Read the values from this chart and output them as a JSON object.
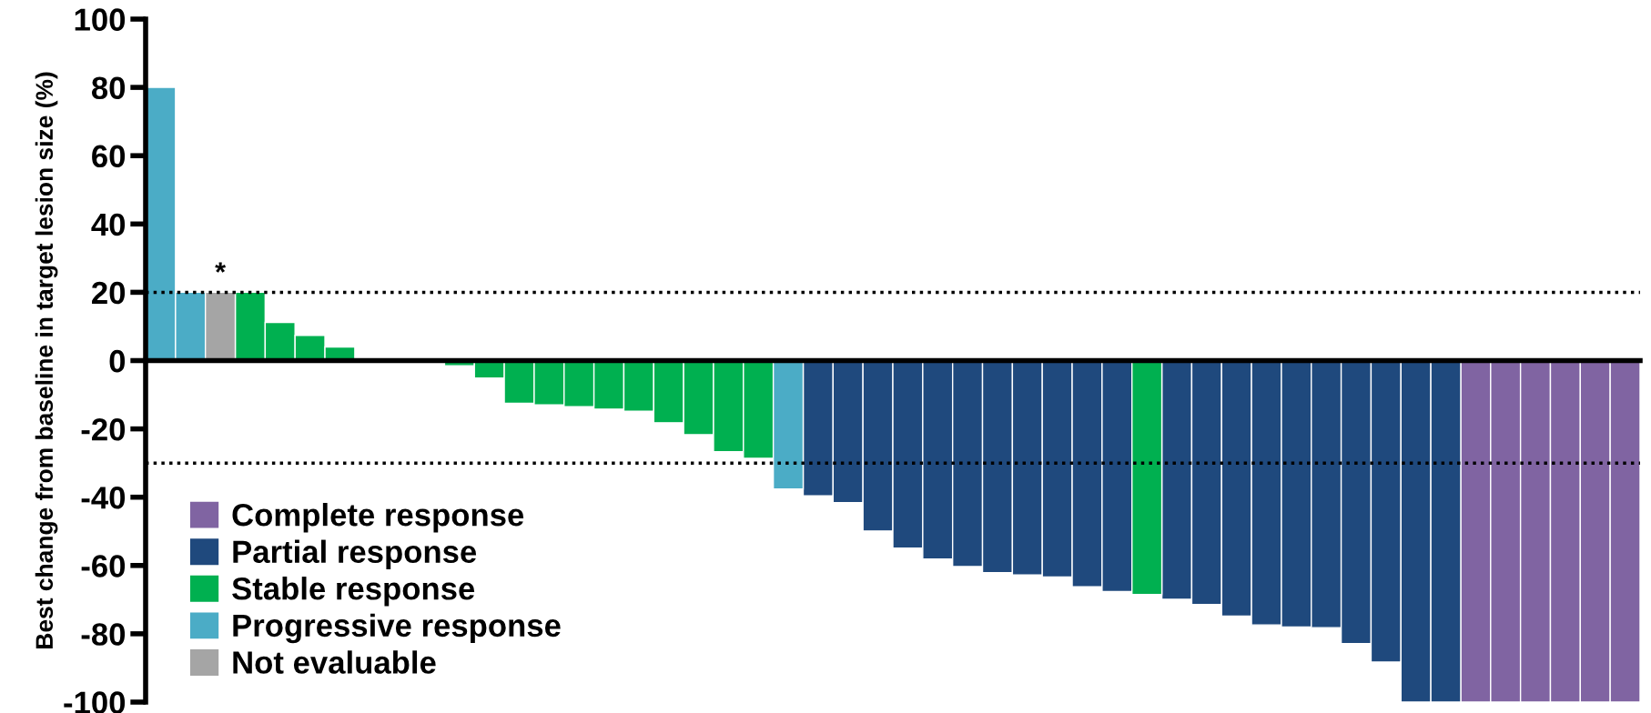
{
  "chart_data": {
    "type": "bar",
    "ylabel": "Best change from baseline in target lesion size (%)",
    "categories": [
      null,
      null,
      null,
      null,
      null,
      null,
      null,
      null,
      null,
      null,
      null,
      null,
      null,
      null,
      null,
      null,
      null,
      null,
      null,
      null,
      null,
      null,
      null,
      null,
      null,
      null,
      null,
      null,
      null,
      null,
      null,
      null,
      null,
      null,
      null,
      null,
      null,
      null,
      null,
      null,
      null,
      null,
      null,
      null,
      null,
      null,
      null,
      null,
      null,
      null
    ],
    "series": [
      {
        "name": "Complete response",
        "color": "#8064a2",
        "values": [
          null,
          null,
          null,
          null,
          null,
          null,
          null,
          null,
          null,
          null,
          null,
          null,
          null,
          null,
          null,
          null,
          null,
          null,
          null,
          null,
          null,
          null,
          null,
          null,
          null,
          null,
          null,
          null,
          null,
          null,
          null,
          null,
          null,
          null,
          null,
          null,
          null,
          null,
          null,
          null,
          null,
          null,
          null,
          null,
          -100,
          -100,
          -100,
          -100,
          -100,
          -100
        ]
      },
      {
        "name": "Partial response",
        "color": "#1f497d",
        "values": [
          null,
          null,
          null,
          null,
          null,
          null,
          null,
          null,
          null,
          null,
          null,
          null,
          null,
          null,
          null,
          null,
          null,
          null,
          null,
          null,
          null,
          null,
          -39.6,
          -41.6,
          -49.9,
          -54.9,
          -58.1,
          -60.3,
          -62.1,
          -62.8,
          -63.4,
          -66.2,
          -67.6,
          null,
          -69.9,
          -71.4,
          -74.8,
          -77.4,
          -78,
          -78.2,
          -82.9,
          -88.3,
          -100,
          -100,
          null,
          null,
          null,
          null,
          null,
          null
        ]
      },
      {
        "name": "Stable response",
        "color": "#00b050",
        "values": [
          null,
          null,
          null,
          20,
          11.2,
          7.4,
          4,
          0,
          0,
          0,
          -1.5,
          -5.1,
          -12.5,
          -13,
          -13.5,
          -14.2,
          -14.8,
          -18.2,
          -21.7,
          -26.7,
          -28.6,
          null,
          null,
          null,
          null,
          null,
          null,
          null,
          null,
          null,
          null,
          null,
          null,
          -68.5,
          null,
          null,
          null,
          null,
          null,
          null,
          null,
          null,
          null,
          null,
          null,
          null,
          null,
          null,
          null,
          null
        ]
      },
      {
        "name": "Progressive response",
        "color": "#4bacc6",
        "values": [
          80,
          20,
          null,
          null,
          null,
          null,
          null,
          null,
          null,
          null,
          null,
          null,
          null,
          null,
          null,
          null,
          null,
          null,
          null,
          null,
          null,
          -37.6,
          null,
          null,
          null,
          null,
          null,
          null,
          null,
          null,
          null,
          null,
          null,
          null,
          null,
          null,
          null,
          null,
          null,
          null,
          null,
          null,
          null,
          null,
          null,
          null,
          null,
          null,
          null,
          null
        ]
      },
      {
        "name": "Not evaluable",
        "color": "#a5a5a5",
        "values": [
          null,
          null,
          20,
          null,
          null,
          null,
          null,
          null,
          null,
          null,
          null,
          null,
          null,
          null,
          null,
          null,
          null,
          null,
          null,
          null,
          null,
          null,
          null,
          null,
          null,
          null,
          null,
          null,
          null,
          null,
          null,
          null,
          null,
          null,
          null,
          null,
          null,
          null,
          null,
          null,
          null,
          null,
          null,
          null,
          null,
          null,
          null,
          null,
          null,
          null
        ]
      }
    ],
    "annotations": [
      "*"
    ],
    "ylim": [
      -100,
      100
    ],
    "yticks": [
      -100,
      -80,
      -60,
      -40,
      -20,
      0,
      20,
      40,
      60,
      80,
      100
    ],
    "ref_lines": [
      {
        "axis": "y",
        "value": 20,
        "line_style": "dotted",
        "color": "#000000"
      },
      {
        "axis": "y",
        "value": -30,
        "line_style": "dotted",
        "color": "#000000"
      }
    ],
    "grid": false,
    "legend": "bottom left",
    "tick_labels": "y"
  }
}
